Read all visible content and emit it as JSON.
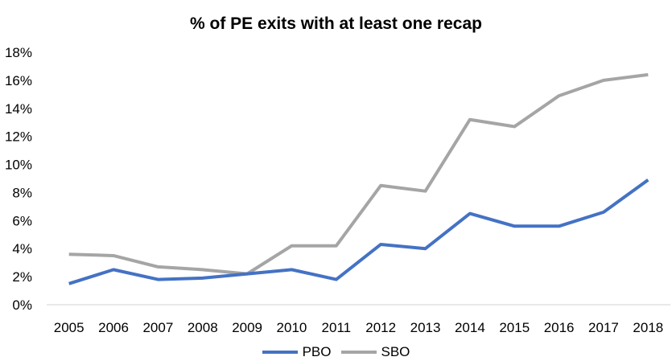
{
  "chart_data": {
    "type": "line",
    "title": "% of PE exits with at least one recap",
    "xlabel": "",
    "ylabel": "",
    "x": [
      "2005",
      "2006",
      "2007",
      "2008",
      "2009",
      "2010",
      "2011",
      "2012",
      "2013",
      "2014",
      "2015",
      "2016",
      "2017",
      "2018"
    ],
    "ylim": [
      0,
      18
    ],
    "yticks": [
      0,
      2,
      4,
      6,
      8,
      10,
      12,
      14,
      16,
      18
    ],
    "ytick_labels": [
      "0%",
      "2%",
      "4%",
      "6%",
      "8%",
      "10%",
      "12%",
      "14%",
      "16%",
      "18%"
    ],
    "grid": false,
    "legend_position": "bottom",
    "series": [
      {
        "name": "PBO",
        "color": "#4472C4",
        "values": [
          1.5,
          2.5,
          1.8,
          1.9,
          2.2,
          2.5,
          1.8,
          4.3,
          4.0,
          6.5,
          5.6,
          5.6,
          6.6,
          8.9
        ]
      },
      {
        "name": "SBO",
        "color": "#A5A5A5",
        "values": [
          3.6,
          3.5,
          2.7,
          2.5,
          2.2,
          4.2,
          4.2,
          8.5,
          8.1,
          13.2,
          12.7,
          14.9,
          16.0,
          16.4
        ]
      }
    ]
  }
}
